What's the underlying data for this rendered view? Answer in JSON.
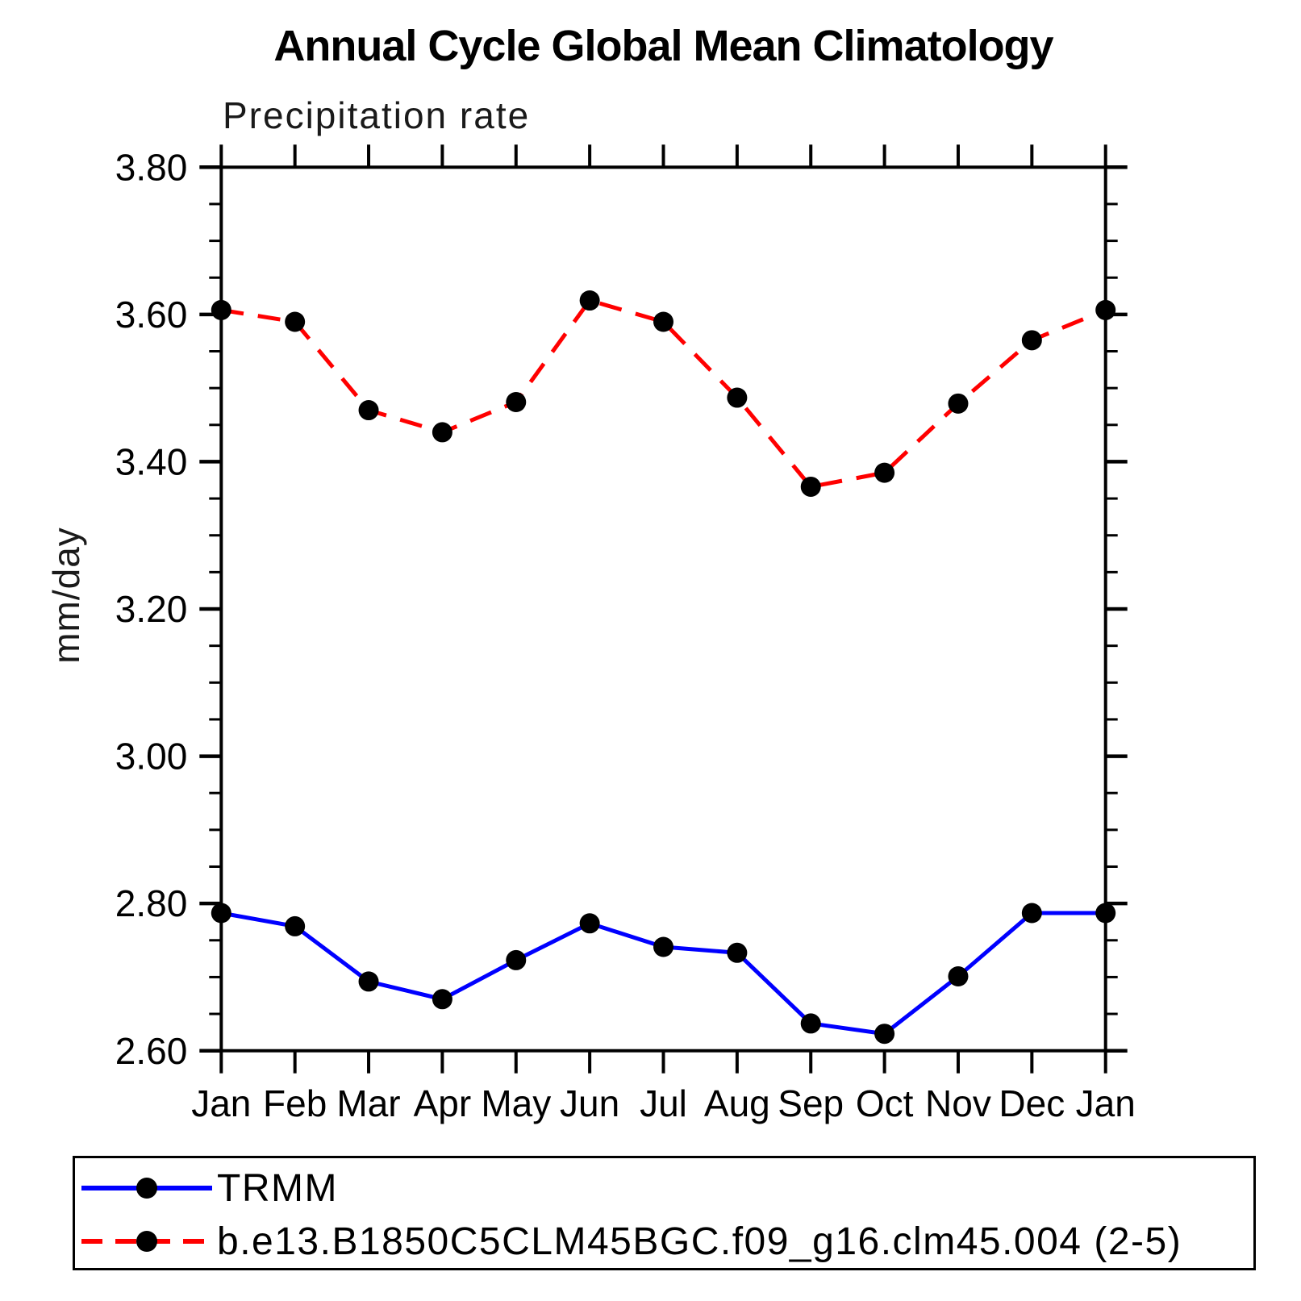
{
  "chart_data": {
    "type": "line",
    "title": "Annual Cycle Global Mean Climatology",
    "subtitle": "Precipitation rate",
    "xlabel": "",
    "ylabel": "mm/day",
    "categories": [
      "Jan",
      "Feb",
      "Mar",
      "Apr",
      "May",
      "Jun",
      "Jul",
      "Aug",
      "Sep",
      "Oct",
      "Nov",
      "Dec",
      "Jan"
    ],
    "ylim": [
      2.6,
      3.8
    ],
    "ytick_major_step": 0.2,
    "ytick_minor_step": 0.05,
    "ytick_labels": [
      "3.80",
      "3.60",
      "3.40",
      "3.20",
      "3.00",
      "2.80",
      "2.60"
    ],
    "grid": false,
    "legend_position": "bottom-left boxed",
    "series": [
      {
        "name": "TRMM",
        "color": "#0000ff",
        "line_style": "solid",
        "marker": "filled-circle",
        "marker_color": "#000000",
        "values": [
          2.787,
          2.769,
          2.694,
          2.67,
          2.723,
          2.773,
          2.741,
          2.733,
          2.637,
          2.623,
          2.701,
          2.787,
          2.787
        ]
      },
      {
        "name": "b.e13.B1850C5CLM45BGC.f09_g16.clm45.004 (2-5)",
        "color": "#ff0000",
        "line_style": "dashed",
        "marker": "filled-circle",
        "marker_color": "#000000",
        "values": [
          3.606,
          3.59,
          3.47,
          3.44,
          3.481,
          3.619,
          3.59,
          3.487,
          3.366,
          3.385,
          3.479,
          3.565,
          3.606
        ]
      }
    ]
  }
}
